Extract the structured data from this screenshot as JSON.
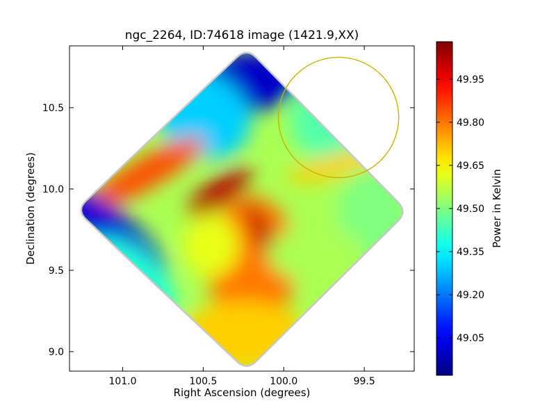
{
  "chart_data": {
    "type": "heatmap",
    "title": "ngc_2264, ID:74618 image (1421.9,XX)",
    "xlabel": "Right Ascension (degrees)",
    "ylabel": "Declination (degrees)",
    "xlim": [
      101.33,
      99.19
    ],
    "ylim": [
      8.88,
      10.88
    ],
    "x_ticks": [
      {
        "value": 101.0,
        "label": "101.0"
      },
      {
        "value": 100.5,
        "label": "100.5"
      },
      {
        "value": 100.0,
        "label": "100.0"
      },
      {
        "value": 99.5,
        "label": "99.5"
      }
    ],
    "y_ticks": [
      {
        "value": 9.0,
        "label": "9.0"
      },
      {
        "value": 9.5,
        "label": "9.5"
      },
      {
        "value": 10.0,
        "label": "10.0"
      },
      {
        "value": 10.5,
        "label": "10.5"
      }
    ],
    "colorbar": {
      "label": "Power in Kelvin",
      "colormap": "jet",
      "range": [
        48.92,
        50.08
      ],
      "ticks": [
        {
          "value": 49.05,
          "label": "49.05"
        },
        {
          "value": 49.2,
          "label": "49.20"
        },
        {
          "value": 49.35,
          "label": "49.35"
        },
        {
          "value": 49.5,
          "label": "49.50"
        },
        {
          "value": 49.65,
          "label": "49.65"
        },
        {
          "value": 49.8,
          "label": "49.80"
        },
        {
          "value": 49.95,
          "label": "49.95"
        }
      ]
    },
    "coverage_corners": [
      {
        "ra": 100.23,
        "dec": 10.86
      },
      {
        "ra": 99.24,
        "dec": 9.86
      },
      {
        "ra": 100.23,
        "dec": 8.89
      },
      {
        "ra": 101.28,
        "dec": 9.87
      }
    ],
    "regions": [
      {
        "name": "",
        "ra": 100.25,
        "dec": 10.65,
        "value": 49.0
      },
      {
        "name": "",
        "ra": 100.5,
        "dec": 10.45,
        "value": 49.3
      },
      {
        "name": "",
        "ra": 100.85,
        "dec": 10.1,
        "value": 49.85
      },
      {
        "name": "",
        "ra": 100.4,
        "dec": 9.98,
        "value": 50.02
      },
      {
        "name": "",
        "ra": 101.05,
        "dec": 9.72,
        "value": 49.02
      },
      {
        "name": "",
        "ra": 100.95,
        "dec": 9.45,
        "value": 49.4
      },
      {
        "name": "",
        "ra": 100.2,
        "dec": 9.55,
        "value": 49.8
      },
      {
        "name": "",
        "ra": 100.13,
        "dec": 9.72,
        "value": 50.02
      },
      {
        "name": "",
        "ra": 100.25,
        "dec": 9.1,
        "value": 49.7
      },
      {
        "name": "",
        "ra": 99.7,
        "dec": 10.42,
        "value": 49.45
      },
      {
        "name": "",
        "ra": 99.65,
        "dec": 10.15,
        "value": 49.7
      },
      {
        "name": "",
        "ra": 99.45,
        "dec": 9.85,
        "value": 49.5
      },
      {
        "name": "",
        "ra": 99.8,
        "dec": 9.6,
        "value": 49.55
      },
      {
        "name": "",
        "ra": 100.45,
        "dec": 9.65,
        "value": 49.62
      }
    ],
    "annotations": [
      {
        "type": "circle",
        "ra_center": 99.66,
        "dec_center": 10.44,
        "radius_deg": 0.37,
        "color": "#c8b400"
      }
    ],
    "grid": false,
    "legend": "none"
  }
}
